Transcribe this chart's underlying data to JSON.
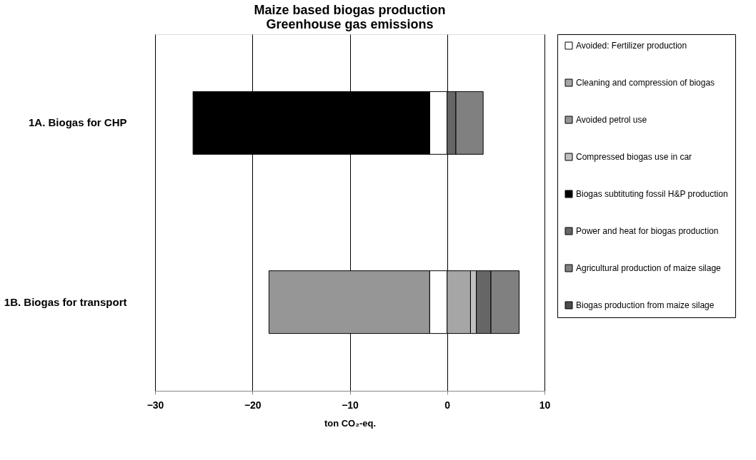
{
  "chart_data": {
    "type": "bar",
    "orientation": "horizontal",
    "stacked": true,
    "title": "Maize based biogas production\nGreenhouse gas emissions",
    "xlabel": "ton CO₂-eq.",
    "categories": [
      "1A. Biogas for CHP",
      "1B. Biogas for transport"
    ],
    "xlim": [
      -30,
      10
    ],
    "xticks": [
      -30,
      -20,
      -10,
      0,
      10
    ],
    "grid": "x",
    "legend": "right",
    "series": [
      {
        "name": "Avoided: Fertilizer production",
        "color": "#ffffff",
        "values": [
          -1.8,
          -1.8
        ]
      },
      {
        "name": "Cleaning and compression of biogas",
        "color": "#a6a6a6",
        "values": [
          null,
          2.4
        ]
      },
      {
        "name": "Avoided petrol use",
        "color": "#969696",
        "values": [
          null,
          -16.5
        ]
      },
      {
        "name": "Compressed biogas use in car",
        "color": "#c0c0c0",
        "values": [
          null,
          0.6
        ]
      },
      {
        "name": "Biogas subtituting fossil H&P production",
        "color": "#000000",
        "values": [
          -24.3,
          null
        ]
      },
      {
        "name": "Power and heat for biogas production",
        "color": "#666666",
        "values": [
          0.9,
          1.5
        ]
      },
      {
        "name": "Agricultural production of maize silage",
        "color": "#808080",
        "values": [
          2.8,
          2.9
        ]
      },
      {
        "name": "Biogas production from maize silage",
        "color": "#4d4d4d",
        "values": [
          null,
          null
        ]
      }
    ]
  }
}
